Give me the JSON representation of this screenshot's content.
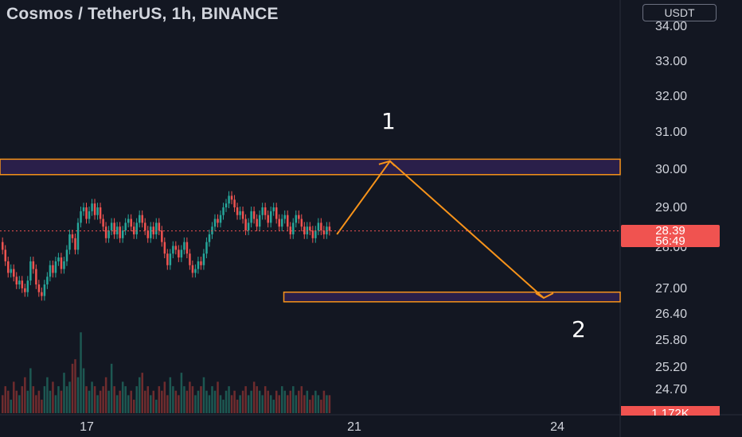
{
  "header": {
    "title": "Cosmos / TetherUS, 1h, BINANCE",
    "currency": "USDT"
  },
  "price_axis": {
    "ticks": [
      "34.00",
      "33.00",
      "32.00",
      "31.00",
      "30.00",
      "29.00",
      "28.00",
      "27.00",
      "26.40",
      "25.80",
      "25.20",
      "24.70"
    ]
  },
  "time_axis": {
    "ticks": [
      "17",
      "21",
      "24"
    ]
  },
  "current_price": {
    "price": "28.39",
    "countdown": "56:49"
  },
  "volume_label": "1.172K",
  "annotations": {
    "label_1": "1",
    "label_2": "2"
  },
  "colors": {
    "background": "#131722",
    "up": "#26a69a",
    "down": "#ef5350",
    "drawing": "#f7931a",
    "zone_fill": "#2a1f4a"
  },
  "chart_data": {
    "type": "candlestick",
    "title": "Cosmos / TetherUS, 1h, BINANCE",
    "ylabel": "USDT",
    "ylim": [
      24.5,
      34.3
    ],
    "x_ticks": [
      "17",
      "21",
      "24"
    ],
    "current_price": 28.39,
    "closes": [
      27.9,
      27.6,
      27.3,
      27.4,
      27.2,
      27.0,
      27.1,
      26.9,
      26.8,
      27.1,
      27.6,
      27.4,
      27.0,
      26.8,
      26.7,
      27.0,
      27.2,
      27.5,
      27.3,
      27.6,
      27.7,
      27.4,
      27.6,
      27.9,
      28.3,
      28.2,
      27.9,
      28.6,
      28.9,
      29.0,
      28.7,
      28.9,
      29.1,
      28.8,
      29.0,
      28.7,
      28.5,
      28.2,
      28.4,
      28.6,
      28.3,
      28.5,
      28.2,
      28.4,
      28.6,
      28.7,
      28.5,
      28.3,
      28.6,
      28.8,
      28.6,
      28.4,
      28.2,
      28.5,
      28.3,
      28.6,
      28.4,
      28.1,
      27.8,
      27.5,
      27.8,
      28.0,
      27.9,
      27.7,
      27.9,
      28.1,
      27.8,
      27.5,
      27.3,
      27.4,
      27.6,
      27.5,
      27.8,
      28.1,
      28.3,
      28.5,
      28.7,
      28.6,
      28.8,
      29.0,
      29.1,
      29.3,
      29.2,
      29.0,
      28.8,
      28.9,
      28.7,
      28.4,
      28.6,
      28.9,
      28.7,
      28.5,
      28.8,
      29.0,
      28.8,
      28.6,
      28.9,
      29.0,
      28.7,
      28.5,
      28.7,
      28.8,
      28.5,
      28.3,
      28.6,
      28.8,
      28.7,
      28.5,
      28.3,
      28.5,
      28.4,
      28.2,
      28.4,
      28.6,
      28.4,
      28.3,
      28.5,
      28.39
    ],
    "volumes": [
      0.4,
      0.6,
      0.5,
      0.3,
      0.7,
      0.5,
      0.4,
      0.6,
      0.8,
      0.5,
      1.0,
      0.6,
      0.4,
      0.5,
      0.3,
      0.6,
      0.8,
      0.5,
      0.7,
      0.4,
      0.6,
      0.5,
      0.9,
      0.6,
      0.7,
      1.1,
      1.2,
      0.8,
      1.8,
      1.0,
      0.6,
      0.5,
      0.7,
      0.6,
      0.4,
      0.5,
      0.6,
      0.8,
      0.5,
      1.1,
      0.6,
      0.4,
      0.5,
      0.7,
      0.6,
      0.4,
      0.5,
      0.3,
      0.6,
      0.8,
      0.9,
      0.5,
      0.6,
      0.4,
      0.5,
      0.3,
      0.6,
      0.5,
      0.7,
      0.4,
      0.8,
      0.6,
      0.5,
      0.4,
      0.9,
      0.6,
      0.5,
      0.7,
      0.6,
      0.4,
      0.5,
      0.6,
      0.8,
      0.5,
      0.4,
      0.6,
      0.5,
      0.7,
      0.4,
      0.3,
      0.5,
      0.6,
      0.4,
      0.5,
      0.3,
      0.4,
      0.5,
      0.6,
      0.4,
      0.5,
      0.7,
      0.6,
      0.5,
      0.4,
      0.6,
      0.5,
      0.4,
      0.3,
      0.5,
      0.4,
      0.6,
      0.5,
      0.4,
      0.5,
      0.6,
      0.4,
      0.5,
      0.6,
      0.4,
      0.5,
      0.3,
      0.4,
      0.5,
      0.4,
      0.3,
      0.5,
      0.4,
      0.4
    ],
    "volume_max": 2.3,
    "zones": [
      {
        "name": "resistance",
        "low": 29.85,
        "high": 30.25
      },
      {
        "name": "support",
        "low": 26.55,
        "high": 26.8
      }
    ],
    "projection_path": [
      {
        "bar": 120,
        "price": 28.3
      },
      {
        "bar": 139,
        "price": 30.2
      },
      {
        "bar": 194,
        "price": 26.65
      }
    ],
    "zone_start_bar": 101,
    "total_bars": 222
  }
}
